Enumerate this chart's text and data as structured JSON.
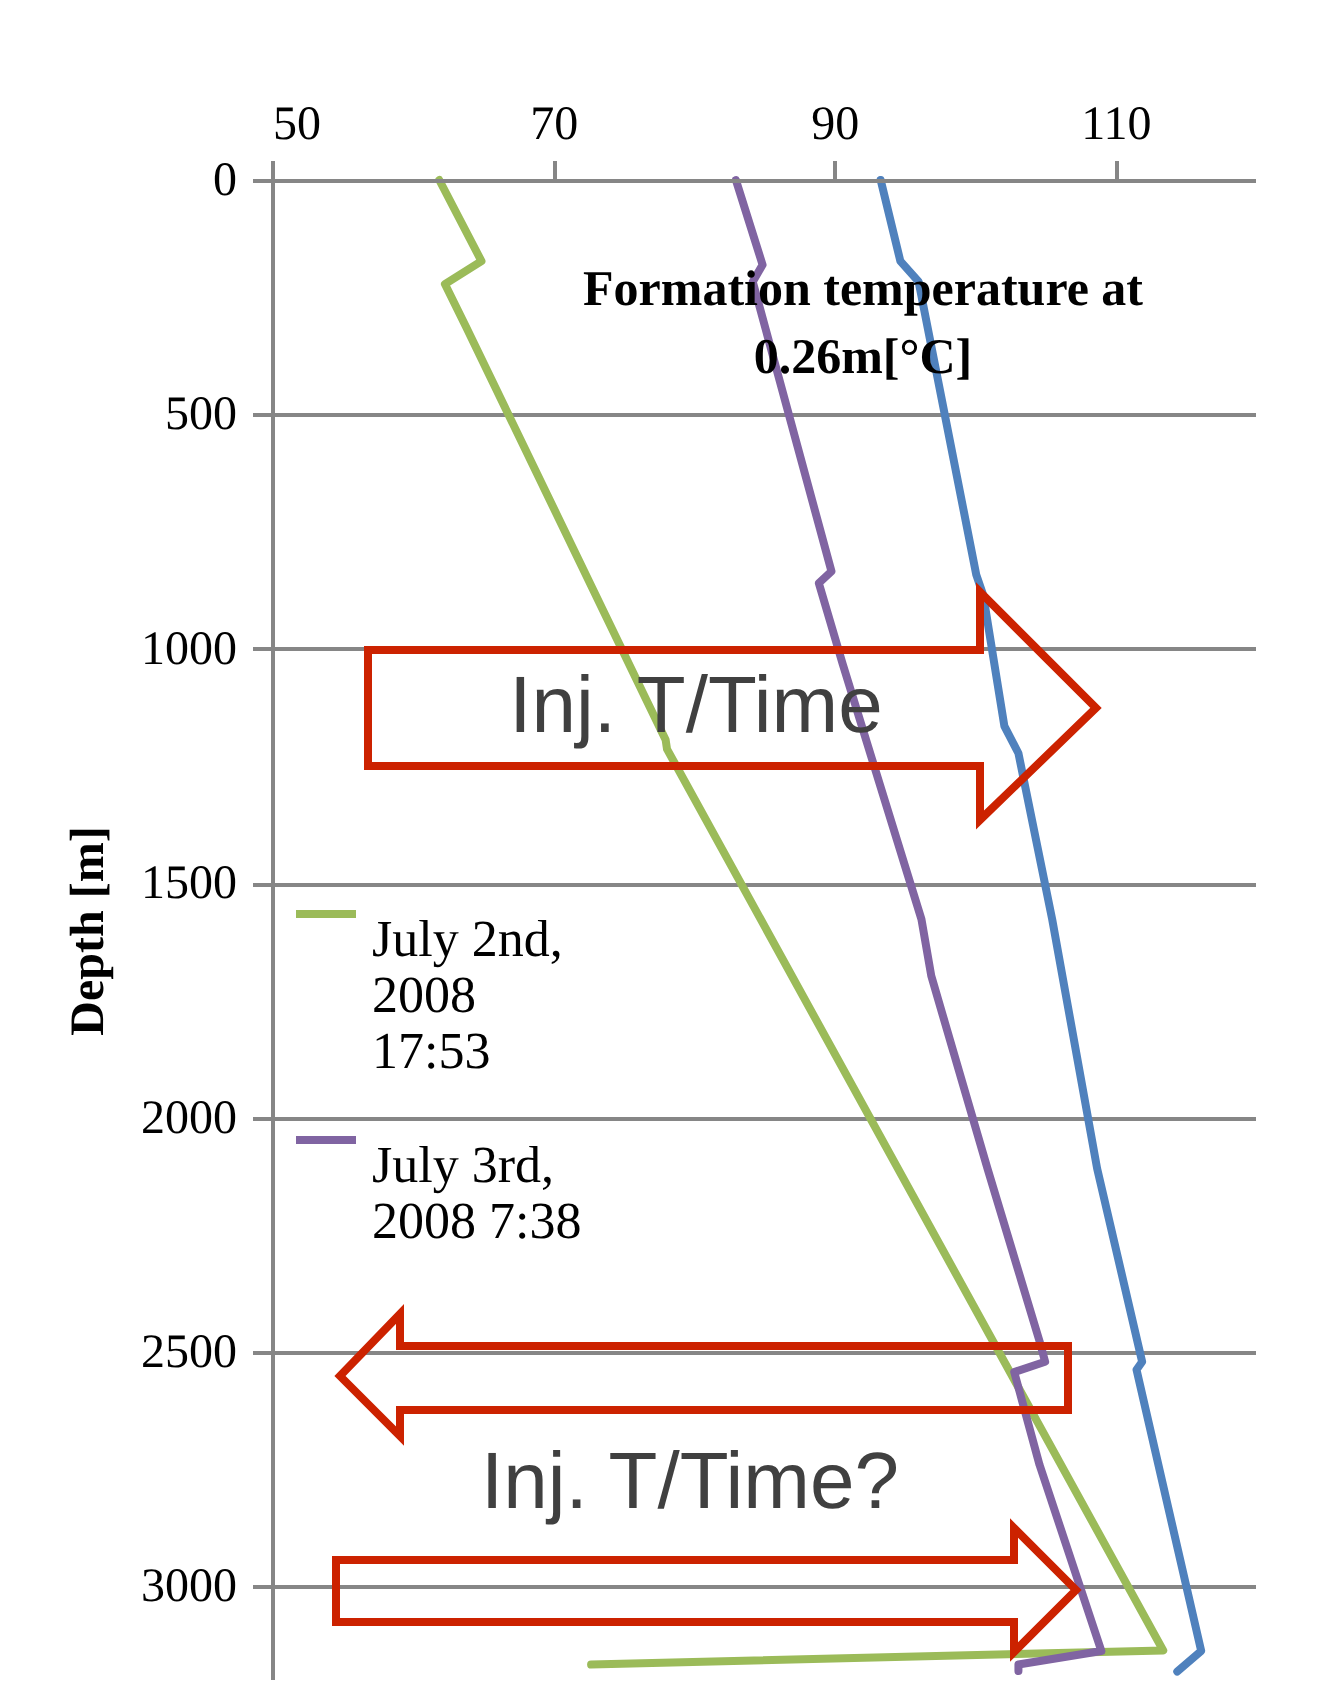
{
  "chart_data": {
    "type": "line",
    "xlabel": "Formation temperature at 0.26m[°C]",
    "ylabel": "Depth [m]",
    "xlim": [
      50,
      120
    ],
    "xticks": [
      50,
      70,
      90,
      110
    ],
    "ylim": [
      3200,
      0
    ],
    "yticks": [
      0,
      500,
      1000,
      1500,
      2000,
      2500,
      3000
    ],
    "grid": "y",
    "legend": "left",
    "series": [
      {
        "name": "July 2nd, 2008 17:53",
        "color": "#9bbb59",
        "x": [
          61.9,
          64.9,
          62.3,
          63.8,
          78.0,
          78.1,
          113.4,
          72.7
        ],
        "values": [
          0,
          173,
          222,
          313,
          1194,
          1214,
          3137,
          3167
        ]
      },
      {
        "name": "July 3rd, 2008  7:38",
        "color": "#8064a2",
        "x": [
          83.0,
          84.9,
          84.2,
          89.8,
          88.9,
          90.6,
          96.2,
          96.9,
          100.9,
          104.6,
          105.0,
          102.8,
          104.6,
          109.0,
          103.1,
          103.1
        ],
        "values": [
          0,
          181,
          217,
          835,
          860,
          1033,
          1577,
          1698,
          2109,
          2477,
          2521,
          2543,
          2741,
          3138,
          3167,
          3181
        ]
      },
      {
        "color": "#4f81bd",
        "x": [
          93.3,
          94.7,
          96.0,
          100.1,
          100.6,
          102.1,
          103.1,
          105.5,
          108.7,
          111.9,
          111.5,
          116.1,
          114.4
        ],
        "values": [
          0,
          173,
          217,
          842,
          886,
          1165,
          1223,
          1577,
          2109,
          2521,
          2538,
          3138,
          3182
        ]
      }
    ],
    "annotations": [
      "Inj. T/Time",
      "Inj. T/Time?"
    ]
  }
}
